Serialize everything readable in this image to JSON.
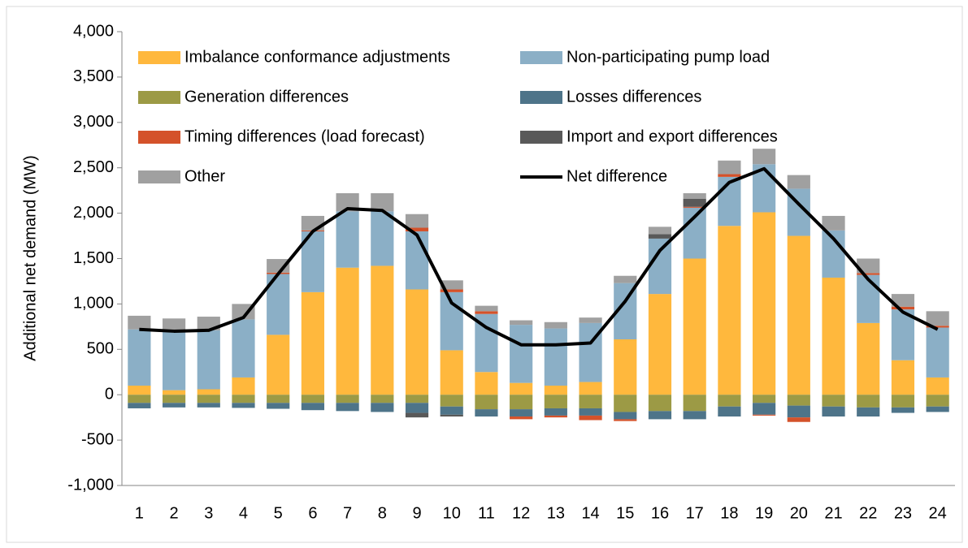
{
  "chart_data": {
    "type": "bar",
    "stacked": true,
    "y_label": "Additional net demand (MW)",
    "categories": [
      "1",
      "2",
      "3",
      "4",
      "5",
      "6",
      "7",
      "8",
      "9",
      "10",
      "11",
      "12",
      "13",
      "14",
      "15",
      "16",
      "17",
      "18",
      "19",
      "20",
      "21",
      "22",
      "23",
      "24"
    ],
    "ylim": [
      -1000,
      4000
    ],
    "yticks": [
      {
        "value": -1000,
        "label": "-1,000"
      },
      {
        "value": -500,
        "label": "-500"
      },
      0,
      500,
      {
        "value": 1000,
        "label": "1,000"
      },
      {
        "value": 1500,
        "label": "1,500"
      },
      {
        "value": 2000,
        "label": "2,000"
      },
      {
        "value": 2500,
        "label": "2,500"
      },
      {
        "value": 3000,
        "label": "3,000"
      },
      {
        "value": 3500,
        "label": "3,500"
      },
      {
        "value": 4000,
        "label": "4,000"
      }
    ],
    "grid": false,
    "legend": "top",
    "series": [
      {
        "name": "Imbalance conformance adjustments",
        "color": "#FFB83D",
        "values": [
          100,
          50,
          60,
          190,
          660,
          1130,
          1400,
          1420,
          1160,
          490,
          250,
          130,
          100,
          140,
          610,
          1110,
          1500,
          1860,
          2010,
          1750,
          1290,
          790,
          380,
          190
        ]
      },
      {
        "name": "Non-participating pump load",
        "color": "#8BAFC6",
        "values": [
          620,
          640,
          650,
          640,
          670,
          670,
          620,
          600,
          640,
          640,
          640,
          640,
          630,
          650,
          620,
          610,
          560,
          540,
          530,
          520,
          520,
          530,
          560,
          550
        ]
      },
      {
        "name": "Generation differences",
        "color": "#9C9A45",
        "values": [
          -90,
          -90,
          -90,
          -90,
          -90,
          -90,
          -90,
          -90,
          -90,
          -130,
          -160,
          -160,
          -150,
          -150,
          -190,
          -180,
          -180,
          -130,
          -90,
          -120,
          -130,
          -140,
          -140,
          -130
        ]
      },
      {
        "name": "Losses differences",
        "color": "#4E7489",
        "values": [
          -60,
          -50,
          -50,
          -55,
          -65,
          -80,
          -90,
          -100,
          -110,
          -90,
          -80,
          -80,
          -80,
          -80,
          -80,
          -90,
          -90,
          -110,
          -130,
          -130,
          -110,
          -100,
          -60,
          -60
        ]
      },
      {
        "name": "Timing differences (load forecast)",
        "color": "#D4522A",
        "values": [
          0,
          0,
          0,
          0,
          15,
          10,
          0,
          0,
          40,
          30,
          30,
          -30,
          -20,
          -50,
          -20,
          0,
          10,
          30,
          -10,
          -50,
          0,
          20,
          30,
          20
        ]
      },
      {
        "name": "Import and export differences",
        "color": "#595959",
        "values": [
          0,
          0,
          0,
          0,
          0,
          0,
          0,
          0,
          -50,
          -20,
          0,
          0,
          0,
          0,
          0,
          50,
          90,
          0,
          0,
          0,
          0,
          0,
          0,
          0
        ]
      },
      {
        "name": "Other",
        "color": "#A0A0A0",
        "values": [
          150,
          150,
          150,
          170,
          150,
          160,
          200,
          200,
          150,
          100,
          60,
          50,
          70,
          60,
          80,
          80,
          60,
          150,
          170,
          150,
          160,
          160,
          140,
          160
        ]
      },
      {
        "name": "Net difference",
        "color": "#000000",
        "type": "line",
        "values": [
          720,
          700,
          710,
          850,
          1330,
          1800,
          2050,
          2030,
          1760,
          1010,
          740,
          550,
          550,
          570,
          1030,
          1590,
          1960,
          2340,
          2490,
          2100,
          1720,
          1270,
          910,
          720
        ]
      }
    ]
  }
}
